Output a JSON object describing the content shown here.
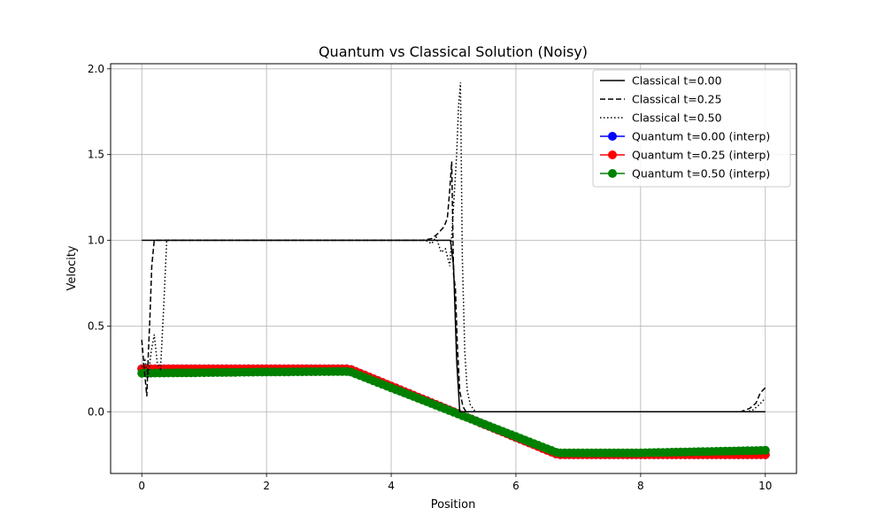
{
  "chart_data": {
    "type": "line",
    "title": "Quantum vs Classical Solution (Noisy)",
    "xlabel": "Position",
    "ylabel": "Velocity",
    "xlim": [
      -0.5,
      10.5
    ],
    "ylim": [
      -0.36,
      2.03
    ],
    "xticks": [
      0,
      2,
      4,
      6,
      8,
      10
    ],
    "yticks": [
      0.0,
      0.5,
      1.0,
      1.5,
      2.0
    ],
    "xtick_labels": [
      "0",
      "2",
      "4",
      "6",
      "8",
      "10"
    ],
    "ytick_labels": [
      "0.0",
      "0.5",
      "1.0",
      "1.5",
      "2.0"
    ],
    "grid": true,
    "legend_position": "top-right",
    "series": [
      {
        "name": "Classical t=0.00",
        "color": "#000000",
        "style": "solid",
        "marker": false,
        "x": [
          0,
          4.95,
          5.0,
          5.05,
          5.1,
          10
        ],
        "y": [
          1.0,
          1.0,
          0.85,
          0.3,
          0.0,
          0.0
        ]
      },
      {
        "name": "Classical t=0.25",
        "color": "#000000",
        "style": "dashed",
        "marker": false,
        "x": [
          0,
          0.04,
          0.08,
          0.1,
          0.13,
          0.16,
          0.2,
          1.0,
          4.5,
          4.65,
          4.75,
          4.85,
          4.9,
          4.94,
          4.97,
          5.0,
          5.03,
          5.06,
          5.1,
          5.15,
          5.2,
          5.3,
          9.6,
          9.75,
          9.85,
          9.92,
          10.0
        ],
        "y": [
          0.42,
          0.25,
          0.09,
          0.3,
          0.55,
          0.85,
          1.0,
          1.0,
          1.0,
          1.01,
          1.04,
          1.08,
          1.13,
          1.3,
          1.46,
          0.8,
          0.72,
          0.4,
          0.12,
          0.03,
          0.0,
          0.0,
          0.0,
          0.02,
          0.05,
          0.11,
          0.14
        ]
      },
      {
        "name": "Classical t=0.50",
        "color": "#000000",
        "style": "dotted",
        "marker": false,
        "x": [
          0,
          0.05,
          0.1,
          0.15,
          0.2,
          0.25,
          0.3,
          0.35,
          0.4,
          1.0,
          4.55,
          4.65,
          4.72,
          4.8,
          4.87,
          4.94,
          5.0,
          5.05,
          5.08,
          5.11,
          5.14,
          5.18,
          5.22,
          5.27,
          5.35,
          9.5,
          9.7,
          9.8,
          9.9,
          10.0
        ],
        "y": [
          0.26,
          0.3,
          0.2,
          0.35,
          0.45,
          0.28,
          0.25,
          0.6,
          1.0,
          1.0,
          1.0,
          0.98,
          1.02,
          0.93,
          0.95,
          0.85,
          1.2,
          1.5,
          1.78,
          1.92,
          0.9,
          0.35,
          0.12,
          0.04,
          0.0,
          0.0,
          0.0,
          0.01,
          0.04,
          0.08
        ]
      },
      {
        "name": "Quantum t=0.00 (interp)",
        "color": "#0000ff",
        "style": "solid",
        "marker": true,
        "x": [
          0,
          3.33,
          6.67,
          10
        ],
        "y": [
          0.25,
          0.25,
          -0.25,
          -0.25
        ]
      },
      {
        "name": "Quantum t=0.25 (interp)",
        "color": "#ff0000",
        "style": "solid",
        "marker": true,
        "x": [
          0,
          3.33,
          6.67,
          10
        ],
        "y": [
          0.25,
          0.25,
          -0.25,
          -0.25
        ]
      },
      {
        "name": "Quantum t=0.50 (interp)",
        "color": "#008000",
        "style": "solid",
        "marker": true,
        "x": [
          0,
          1.0,
          2.0,
          3.33,
          6.67,
          8.0,
          10
        ],
        "y": [
          0.225,
          0.228,
          0.232,
          0.235,
          -0.24,
          -0.24,
          -0.225
        ]
      }
    ]
  }
}
